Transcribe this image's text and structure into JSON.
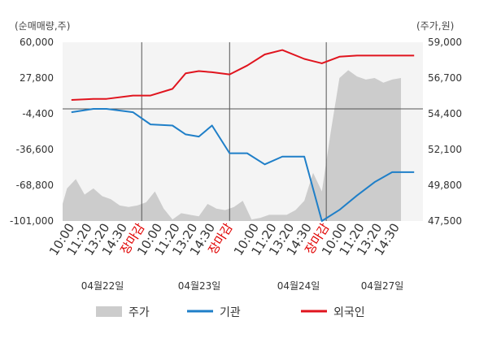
{
  "chart_data": {
    "type": "line",
    "left_axis_title": "(순매매량,주)",
    "right_axis_title": "(주가,원)",
    "left_ticks": [
      "60,000",
      "27,800",
      "-4,400",
      "-36,600",
      "-68,800",
      "-101,000"
    ],
    "right_ticks": [
      "59,000",
      "56,700",
      "54,400",
      "52,100",
      "49,800",
      "47,500"
    ],
    "ylim_left": [
      -101000,
      60000
    ],
    "ylim_right": [
      47500,
      59000
    ],
    "x_ticks": [
      {
        "label": "10:00",
        "color": "#333333"
      },
      {
        "label": "11:20",
        "color": "#333333"
      },
      {
        "label": "13:20",
        "color": "#333333"
      },
      {
        "label": "14:30",
        "color": "#333333"
      },
      {
        "label": "장마감",
        "color": "#e00000"
      },
      {
        "label": "10:00",
        "color": "#333333"
      },
      {
        "label": "11:20",
        "color": "#333333"
      },
      {
        "label": "13:20",
        "color": "#333333"
      },
      {
        "label": "14:30",
        "color": "#333333"
      },
      {
        "label": "장마감",
        "color": "#e00000"
      },
      {
        "label": "10:00",
        "color": "#333333"
      },
      {
        "label": "11:20",
        "color": "#333333"
      },
      {
        "label": "13:20",
        "color": "#333333"
      },
      {
        "label": "14:30",
        "color": "#333333"
      },
      {
        "label": "장마감",
        "color": "#e00000"
      },
      {
        "label": "10:00",
        "color": "#333333"
      },
      {
        "label": "11:20",
        "color": "#333333"
      },
      {
        "label": "13:20",
        "color": "#333333"
      },
      {
        "label": "14:30",
        "color": "#333333"
      }
    ],
    "day_labels": [
      "04월22일",
      "04월23일",
      "04월24일",
      "04월27일"
    ],
    "legend": [
      {
        "name": "주가",
        "kind": "area",
        "color": "#cccccc"
      },
      {
        "name": "기관",
        "kind": "line",
        "color": "#1f7fc8"
      },
      {
        "name": "외국인",
        "kind": "line",
        "color": "#e0141e"
      }
    ],
    "series": [
      {
        "name": "기관",
        "color": "#1f7fc8",
        "x": [
          1,
          3.5,
          5,
          8,
          10,
          12.5,
          14,
          15.5,
          17,
          19,
          21,
          23,
          25,
          27.5,
          29.5,
          31.5,
          33.5,
          35.5,
          37.5,
          40
        ],
        "y": [
          -3000,
          0,
          0,
          -3000,
          -14000,
          -15000,
          -23000,
          -25000,
          -15000,
          -40000,
          -40000,
          -50000,
          -43000,
          -43000,
          -101000,
          -91000,
          -78000,
          -66000,
          -57000,
          -57000
        ]
      },
      {
        "name": "외국인",
        "color": "#e0141e",
        "x": [
          1,
          3.5,
          5,
          8,
          10,
          12.5,
          14,
          15.5,
          17,
          19,
          21,
          23,
          25,
          27.5,
          29.5,
          31.5,
          33.5,
          35.5,
          37.5,
          40
        ],
        "y": [
          8000,
          9000,
          9000,
          12000,
          12000,
          18000,
          32000,
          34000,
          33000,
          31000,
          39000,
          49000,
          53000,
          45000,
          41000,
          47000,
          48000,
          48000,
          48000,
          48000
        ]
      },
      {
        "name": "주가",
        "color": "#cccccc",
        "x": [
          0,
          0.5,
          1.5,
          2.5,
          3.5,
          4.5,
          5.5,
          6.5,
          7.5,
          8.5,
          9.5,
          10.5,
          11.5,
          12.5,
          13.5,
          14.5,
          15.5,
          16.5,
          17.5,
          18.5,
          19.5,
          20.5,
          21.5,
          22.5,
          23.5,
          24.5,
          25.5,
          26.5,
          27.5,
          28.5,
          29.5,
          30.5,
          31.5,
          32.5,
          33.5,
          34.5,
          35.5,
          36.5,
          37.5,
          38.5
        ],
        "y": [
          48600,
          49600,
          50200,
          49200,
          49600,
          49100,
          48900,
          48500,
          48400,
          48500,
          48700,
          49400,
          48300,
          47600,
          48000,
          47900,
          47800,
          48600,
          48300,
          48200,
          48400,
          48800,
          47600,
          47700,
          47900,
          47900,
          47900,
          48200,
          48800,
          50600,
          49400,
          53200,
          56700,
          57200,
          56800,
          56600,
          56700,
          56400,
          56600,
          56700
        ]
      }
    ]
  }
}
